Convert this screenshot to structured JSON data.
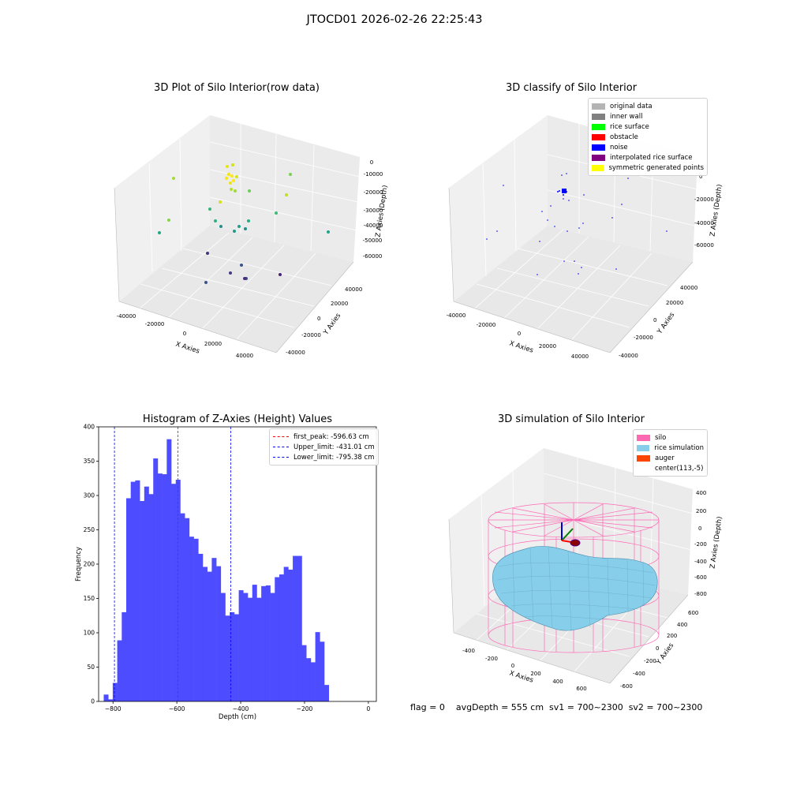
{
  "figure": {
    "suptitle": "JTOCD01 2026-02-26 22:25:43",
    "footer": "flag = 0    avgDepth = 555 cm  sv1 = 700~2300  sv2 = 700~2300"
  },
  "panels": {
    "raw": {
      "title": "3D Plot of Silo Interior(row data)",
      "xlabel": "X Axies",
      "ylabel": "Y Axies",
      "zlabel": "Z Axies (Depth)",
      "xticks": [
        "-40000",
        "-20000",
        "0",
        "20000",
        "40000"
      ],
      "yticks": [
        "-40000",
        "-20000",
        "0",
        "20000",
        "40000"
      ],
      "zticks": [
        "0",
        "-10000",
        "-20000",
        "-30000",
        "-40000",
        "-50000",
        "-60000"
      ]
    },
    "classify": {
      "title": "3D classify of Silo Interior",
      "xlabel": "X Axies",
      "ylabel": "Y Axies",
      "zlabel": "Z Axies (Depth)",
      "xticks": [
        "-40000",
        "-20000",
        "0",
        "20000",
        "40000"
      ],
      "yticks": [
        "-40000",
        "-20000",
        "0",
        "20000",
        "40000"
      ],
      "zticks": [
        "0",
        "-20000",
        "-40000",
        "-60000"
      ],
      "legend": [
        {
          "label": "original data",
          "color": "#b4b4b4"
        },
        {
          "label": "inner wall",
          "color": "#808080"
        },
        {
          "label": "rice surface",
          "color": "#00ff00"
        },
        {
          "label": "obstacle",
          "color": "#ff0000"
        },
        {
          "label": "noise",
          "color": "#0000ff"
        },
        {
          "label": "interpolated rice surface",
          "color": "#800080"
        },
        {
          "label": "symmetric generated points",
          "color": "#ffff00"
        }
      ]
    },
    "histogram": {
      "title": "Histogram of Z-Axies (Height) Values",
      "xlabel": "Depth (cm)",
      "ylabel": "Frequency",
      "legend": [
        {
          "label": "first_peak: -596.63 cm",
          "color": "#ff0000"
        },
        {
          "label": "Upper_limit: -431.01 cm",
          "color": "#0000ff"
        },
        {
          "label": "Lower_limit: -795.38 cm",
          "color": "#0000ff"
        }
      ]
    },
    "simulation": {
      "title": "3D simulation of Silo Interior",
      "xlabel": "X Axies",
      "ylabel": "Y Axies",
      "zlabel": "Z Axies (Depth)",
      "xticks": [
        "-400",
        "-200",
        "0",
        "200",
        "400",
        "600"
      ],
      "yticks": [
        "-600",
        "-400",
        "-200",
        "0",
        "200",
        "400",
        "600"
      ],
      "zticks": [
        "400",
        "200",
        "0",
        "-200",
        "-400",
        "-600",
        "-800"
      ],
      "legend": [
        {
          "label": "silo",
          "color": "#ff69b4"
        },
        {
          "label": "rice simulation",
          "color": "#87ceeb"
        },
        {
          "label": "auger",
          "color": "#ff4500"
        },
        {
          "label": "center(113,-5)",
          "color": "#ffffff"
        }
      ]
    }
  },
  "chart_data": {
    "type": "bar",
    "title": "Histogram of Z-Axies (Height) Values",
    "xlabel": "Depth (cm)",
    "ylabel": "Frequency",
    "xlim": [
      -845,
      25
    ],
    "ylim": [
      0,
      400
    ],
    "xticks": [
      -800,
      -600,
      -400,
      -200,
      0
    ],
    "yticks": [
      0,
      50,
      100,
      150,
      200,
      250,
      300,
      350,
      400
    ],
    "bin_start": -829,
    "bin_width": 14.1,
    "values": [
      10,
      3,
      27,
      89,
      130,
      296,
      320,
      322,
      292,
      313,
      302,
      354,
      332,
      331,
      382,
      317,
      323,
      274,
      267,
      240,
      237,
      215,
      196,
      189,
      209,
      197,
      158,
      125,
      130,
      127,
      162,
      158,
      151,
      170,
      151,
      168,
      169,
      158,
      181,
      185,
      196,
      192,
      212,
      212,
      82,
      63,
      57,
      101,
      87,
      24
    ],
    "vlines": [
      {
        "x": -596.63,
        "label": "first_peak: -596.63 cm",
        "color": "#ff0000"
      },
      {
        "x": -431.01,
        "label": "Upper_limit: -431.01 cm",
        "color": "#0000ff"
      },
      {
        "x": -795.38,
        "label": "Lower_limit: -795.38 cm",
        "color": "#0000ff"
      }
    ],
    "bar_color": "#4d4dff",
    "grid": false,
    "legend_position": "top-right"
  }
}
